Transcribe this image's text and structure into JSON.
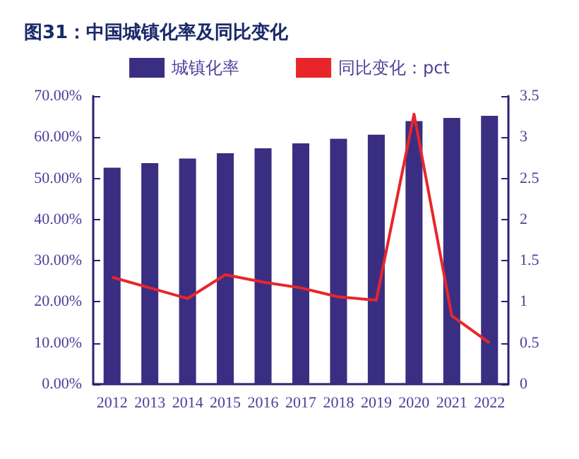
{
  "chart_data": {
    "type": "bar",
    "title": "图31：中国城镇化率及同比变化",
    "categories": [
      "2012",
      "2013",
      "2014",
      "2015",
      "2016",
      "2017",
      "2018",
      "2019",
      "2020",
      "2021",
      "2022"
    ],
    "series": [
      {
        "name": "城镇化率",
        "color": "#3a2e82",
        "values": [
          52.6,
          53.7,
          54.8,
          56.1,
          57.3,
          58.5,
          59.6,
          60.6,
          63.9,
          64.7,
          65.2
        ]
      },
      {
        "name": "同比变化：pct",
        "type": "line",
        "axis": "y2",
        "color": "#e8262a",
        "values": [
          1.3,
          1.17,
          1.04,
          1.33,
          1.24,
          1.17,
          1.06,
          1.02,
          3.28,
          0.83,
          0.5
        ]
      }
    ],
    "ylim": [
      0,
      70
    ],
    "yticks": [
      {
        "value": 0,
        "label": "0.00%"
      },
      {
        "value": 10,
        "label": "10.00%"
      },
      {
        "value": 20,
        "label": "20.00%"
      },
      {
        "value": 30,
        "label": "30.00%"
      },
      {
        "value": 40,
        "label": "40.00%"
      },
      {
        "value": 50,
        "label": "50.00%"
      },
      {
        "value": 60,
        "label": "60.00%"
      },
      {
        "value": 70,
        "label": "70.00%"
      }
    ],
    "y2lim": [
      0,
      3.5
    ],
    "y2ticks": [
      0,
      0.5,
      1,
      1.5,
      2,
      2.5,
      3,
      3.5
    ],
    "legend": "top",
    "grid": false,
    "marker": "none",
    "line_style": "solid"
  }
}
